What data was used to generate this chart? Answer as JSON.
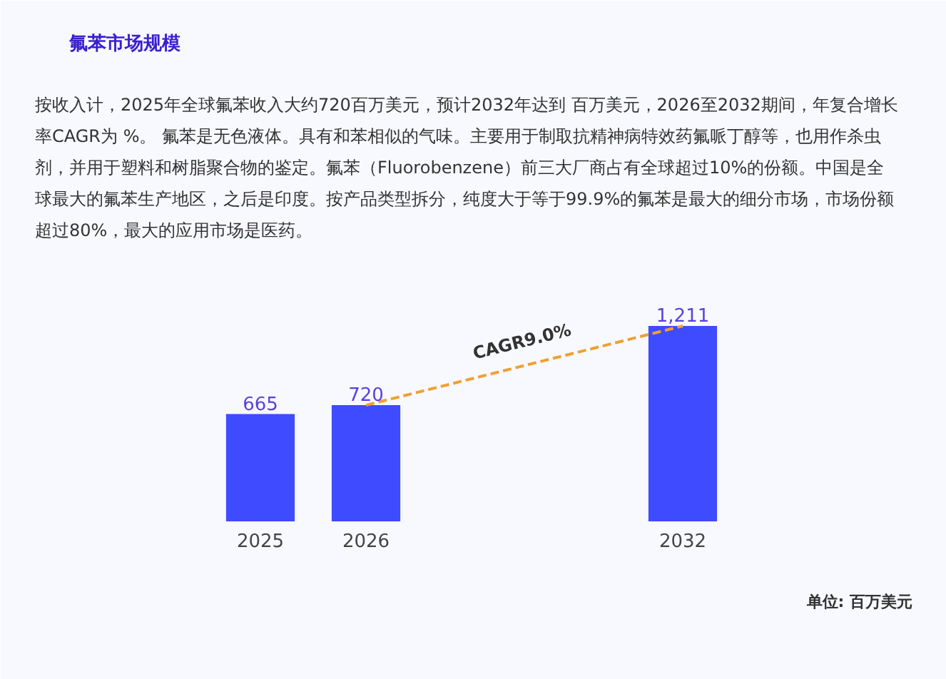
{
  "chart_data": {
    "type": "bar",
    "title": "氟苯市场规模",
    "subtitle": "按收入计，2025年全球氟苯收入大约720百万美元，预计2032年达到 百万美元，2026至2032期间，年复合增长率CAGR为 %。 氟苯是无色液体。具有和苯相似的气味。主要用于制取抗精神病特效药氟哌丁醇等，也用作杀虫剂，并用于塑料和树脂聚合物的鉴定。氟苯（Fluorobenzene）前三大厂商占有全球超过10%的份额。中国是全球最大的氟苯生产地区，之后是印度。按产品类型拆分，纯度大于等于99.9%的氟苯是最大的细分市场，市场份额超过80%，最大的应用市场是医药。",
    "categories": [
      "2025",
      "2026",
      null,
      null,
      "2032"
    ],
    "series": [
      {
        "color": "#3f4bff",
        "values": [
          665,
          720,
          null,
          null,
          1211
        ],
        "value_labels": [
          "665",
          "720",
          null,
          null,
          "1,211"
        ]
      },
      {
        "type": "line",
        "color": "#f0a030",
        "line_style": "dashed",
        "values": [
          null,
          720,
          null,
          null,
          1211
        ]
      }
    ],
    "annotations": [
      "CAGR9.0%",
      "单位: 百万美元"
    ],
    "grid": false
  }
}
